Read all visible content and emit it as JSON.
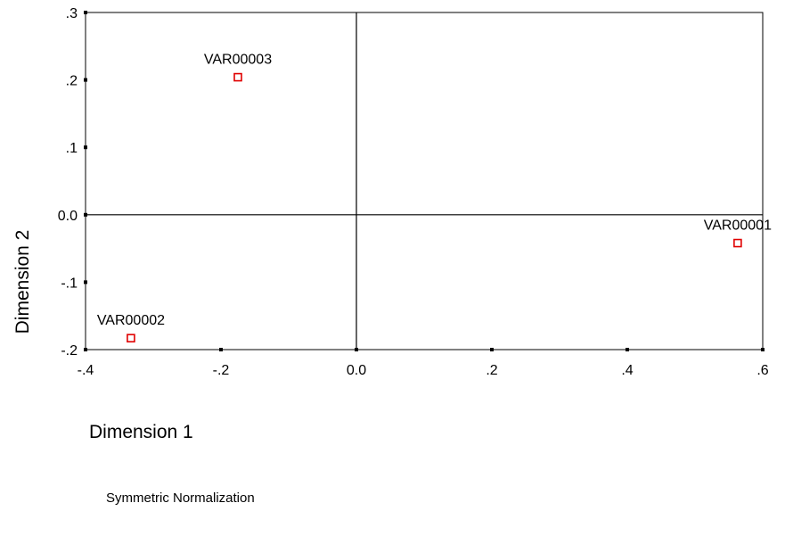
{
  "chart_data": {
    "type": "scatter",
    "title": "",
    "xlabel": "Dimension 1",
    "ylabel": "Dimension 2",
    "xlim": [
      -0.4,
      0.6
    ],
    "ylim": [
      -0.2,
      0.3
    ],
    "x_ticks": [
      {
        "value": -0.4,
        "label": "-.4"
      },
      {
        "value": -0.2,
        "label": "-.2"
      },
      {
        "value": 0.0,
        "label": "0.0"
      },
      {
        "value": 0.2,
        "label": ".2"
      },
      {
        "value": 0.4,
        "label": ".4"
      },
      {
        "value": 0.6,
        "label": ".6"
      }
    ],
    "y_ticks": [
      {
        "value": 0.3,
        "label": ".3"
      },
      {
        "value": 0.2,
        "label": ".2"
      },
      {
        "value": 0.1,
        "label": ".1"
      },
      {
        "value": 0.0,
        "label": "0.0"
      },
      {
        "value": -0.1,
        "label": "-.1"
      },
      {
        "value": -0.2,
        "label": "-.2"
      }
    ],
    "reference_lines": {
      "x": 0.0,
      "y": 0.0
    },
    "grid": false,
    "marker": "hollow-square",
    "marker_color": "#e00000",
    "points": [
      {
        "label": "VAR00001",
        "x": 0.563,
        "y": -0.042
      },
      {
        "label": "VAR00002",
        "x": -0.333,
        "y": -0.183
      },
      {
        "label": "VAR00003",
        "x": -0.175,
        "y": 0.204
      }
    ]
  },
  "footnote": "Symmetric Normalization"
}
